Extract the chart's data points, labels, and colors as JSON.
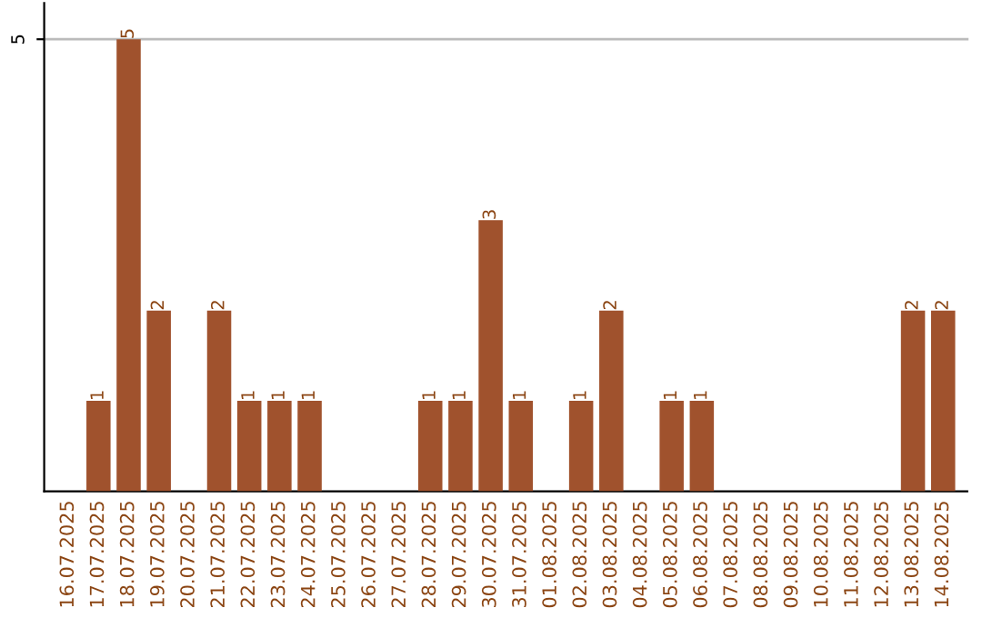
{
  "chart_data": {
    "type": "bar",
    "categories": [
      "16.07.2025",
      "17.07.2025",
      "18.07.2025",
      "19.07.2025",
      "20.07.2025",
      "21.07.2025",
      "22.07.2025",
      "23.07.2025",
      "24.07.2025",
      "25.07.2025",
      "26.07.2025",
      "27.07.2025",
      "28.07.2025",
      "29.07.2025",
      "30.07.2025",
      "31.07.2025",
      "01.08.2025",
      "02.08.2025",
      "03.08.2025",
      "04.08.2025",
      "05.08.2025",
      "06.08.2025",
      "07.08.2025",
      "08.08.2025",
      "09.08.2025",
      "10.08.2025",
      "11.08.2025",
      "12.08.2025",
      "13.08.2025",
      "14.08.2025"
    ],
    "values": [
      0,
      1,
      5,
      2,
      0,
      2,
      1,
      1,
      1,
      0,
      0,
      0,
      1,
      1,
      3,
      1,
      0,
      1,
      2,
      0,
      1,
      1,
      0,
      0,
      0,
      0,
      0,
      0,
      2,
      2
    ],
    "value_labels": [
      null,
      "1",
      "5",
      "2",
      null,
      "2",
      "1",
      "1",
      "1",
      null,
      null,
      null,
      "1",
      "1",
      "3",
      "1",
      null,
      "1",
      "2",
      null,
      "1",
      "1",
      null,
      null,
      null,
      null,
      null,
      null,
      "2",
      "2"
    ],
    "color": "#a0522d",
    "ylim": [
      0,
      5.4
    ],
    "yticks": [
      5
    ],
    "grid": "y"
  }
}
